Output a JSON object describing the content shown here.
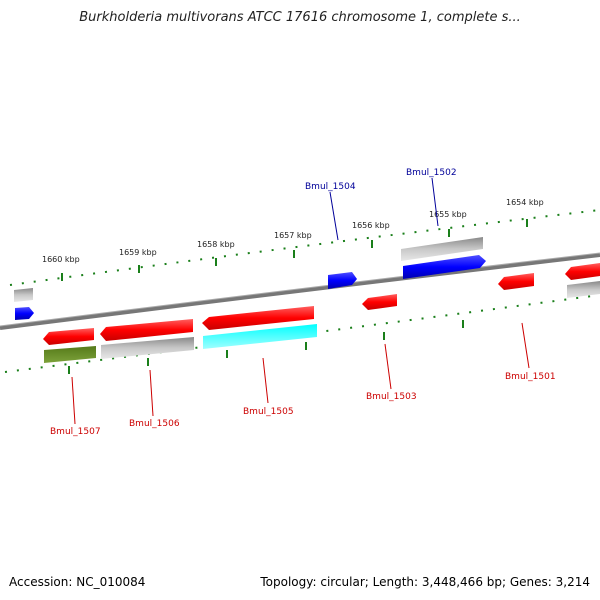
{
  "title": "Burkholderia multivorans ATCC 17616 chromosome 1, complete s...",
  "footer": {
    "accession": "Accession: NC_010084",
    "summary": "Topology: circular; Length: 3,448,466 bp; Genes: 3,214"
  },
  "scale": {
    "kbp_labels": [
      "1660 kbp",
      "1659 kbp",
      "1658 kbp",
      "1657 kbp",
      "1656 kbp",
      "1655 kbp",
      "1654 kbp"
    ]
  },
  "genes": {
    "top_labels": [
      "Bmul_1504",
      "Bmul_1502"
    ],
    "bottom_labels": [
      "Bmul_1507",
      "Bmul_1506",
      "Bmul_1505",
      "Bmul_1503",
      "Bmul_1501"
    ]
  },
  "colors": {
    "forward_gene": "#0000ff",
    "reverse_gene": "#ff0000",
    "gray_feature": "#aaaaaa",
    "cyan_feature": "#00ffff",
    "olive_feature": "#6b8e23",
    "tick": "#1a7f1a",
    "backbone": "#808080",
    "label_top": "#000099",
    "label_bottom": "#cc0000"
  }
}
